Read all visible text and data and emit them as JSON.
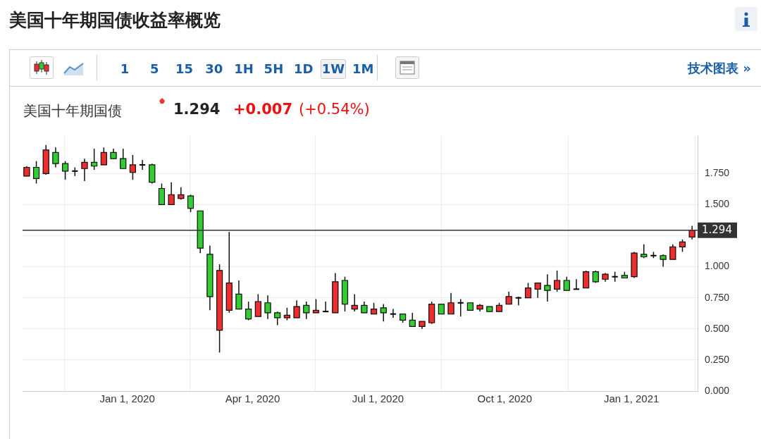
{
  "chart_data": {
    "type": "candlestick",
    "title": "美国十年期国债收益率概览",
    "subtitle": "美国十年期国债",
    "annotations": [
      "1.294",
      "+0.007",
      "(+0.54%)",
      "1 5 15 30 1H 5H 1D 1W 1M",
      "技术图表 »"
    ],
    "x": [
      "2019-10-20",
      "2019-10-27",
      "2019-11-03",
      "2019-11-10",
      "2019-11-17",
      "2019-11-24",
      "2019-12-01",
      "2019-12-08",
      "2019-12-15",
      "2019-12-22",
      "2019-12-29",
      "2020-01-05",
      "2020-01-12",
      "2020-01-19",
      "2020-01-26",
      "2020-02-02",
      "2020-02-09",
      "2020-02-16",
      "2020-02-23",
      "2020-03-01",
      "2020-03-08",
      "2020-03-15",
      "2020-03-22",
      "2020-03-29",
      "2020-04-05",
      "2020-04-12",
      "2020-04-19",
      "2020-04-26",
      "2020-05-03",
      "2020-05-10",
      "2020-05-17",
      "2020-05-24",
      "2020-05-31",
      "2020-06-07",
      "2020-06-14",
      "2020-06-21",
      "2020-06-28",
      "2020-07-05",
      "2020-07-12",
      "2020-07-19",
      "2020-07-26",
      "2020-08-02",
      "2020-08-09",
      "2020-08-16",
      "2020-08-23",
      "2020-08-30",
      "2020-09-06",
      "2020-09-13",
      "2020-09-20",
      "2020-09-27",
      "2020-10-04",
      "2020-10-11",
      "2020-10-18",
      "2020-10-25",
      "2020-11-01",
      "2020-11-08",
      "2020-11-15",
      "2020-11-22",
      "2020-11-29",
      "2020-12-06",
      "2020-12-13",
      "2020-12-20",
      "2020-12-27",
      "2021-01-03",
      "2021-01-10",
      "2021-01-17",
      "2021-01-24",
      "2021-01-31",
      "2021-02-07",
      "2021-02-14"
    ],
    "ohlc": [
      [
        1.73,
        1.81,
        1.73,
        1.8
      ],
      [
        1.8,
        1.85,
        1.67,
        1.71
      ],
      [
        1.75,
        1.98,
        1.74,
        1.94
      ],
      [
        1.92,
        1.96,
        1.8,
        1.83
      ],
      [
        1.83,
        1.85,
        1.7,
        1.77
      ],
      [
        1.77,
        1.8,
        1.73,
        1.77
      ],
      [
        1.79,
        1.87,
        1.69,
        1.84
      ],
      [
        1.84,
        1.95,
        1.78,
        1.81
      ],
      [
        1.82,
        1.96,
        1.82,
        1.92
      ],
      [
        1.92,
        1.95,
        1.87,
        1.87
      ],
      [
        1.87,
        1.95,
        1.79,
        1.79
      ],
      [
        1.76,
        1.9,
        1.7,
        1.82
      ],
      [
        1.82,
        1.86,
        1.78,
        1.82
      ],
      [
        1.82,
        1.83,
        1.67,
        1.68
      ],
      [
        1.63,
        1.67,
        1.5,
        1.5
      ],
      [
        1.5,
        1.68,
        1.5,
        1.58
      ],
      [
        1.55,
        1.64,
        1.54,
        1.58
      ],
      [
        1.57,
        1.58,
        1.44,
        1.47
      ],
      [
        1.45,
        1.45,
        1.11,
        1.15
      ],
      [
        1.1,
        1.17,
        0.65,
        0.76
      ],
      [
        0.49,
        1.02,
        0.31,
        0.97
      ],
      [
        0.65,
        1.28,
        0.63,
        0.87
      ],
      [
        0.78,
        0.89,
        0.66,
        0.66
      ],
      [
        0.66,
        0.72,
        0.57,
        0.58
      ],
      [
        0.6,
        0.78,
        0.6,
        0.72
      ],
      [
        0.71,
        0.77,
        0.58,
        0.63
      ],
      [
        0.63,
        0.64,
        0.53,
        0.59
      ],
      [
        0.59,
        0.67,
        0.57,
        0.61
      ],
      [
        0.59,
        0.73,
        0.59,
        0.68
      ],
      [
        0.69,
        0.72,
        0.58,
        0.63
      ],
      [
        0.63,
        0.74,
        0.63,
        0.65
      ],
      [
        0.64,
        0.72,
        0.64,
        0.64
      ],
      [
        0.63,
        0.95,
        0.63,
        0.88
      ],
      [
        0.89,
        0.92,
        0.64,
        0.7
      ],
      [
        0.66,
        0.78,
        0.64,
        0.69
      ],
      [
        0.69,
        0.72,
        0.63,
        0.63
      ],
      [
        0.62,
        0.71,
        0.62,
        0.66
      ],
      [
        0.67,
        0.7,
        0.56,
        0.63
      ],
      [
        0.62,
        0.66,
        0.59,
        0.62
      ],
      [
        0.62,
        0.62,
        0.55,
        0.57
      ],
      [
        0.57,
        0.63,
        0.52,
        0.52
      ],
      [
        0.52,
        0.56,
        0.5,
        0.56
      ],
      [
        0.55,
        0.72,
        0.54,
        0.7
      ],
      [
        0.7,
        0.7,
        0.62,
        0.62
      ],
      [
        0.62,
        0.79,
        0.62,
        0.71
      ],
      [
        0.71,
        0.74,
        0.6,
        0.71
      ],
      [
        0.71,
        0.71,
        0.65,
        0.65
      ],
      [
        0.66,
        0.7,
        0.64,
        0.69
      ],
      [
        0.68,
        0.68,
        0.64,
        0.64
      ],
      [
        0.64,
        0.71,
        0.64,
        0.69
      ],
      [
        0.7,
        0.8,
        0.7,
        0.76
      ],
      [
        0.75,
        0.76,
        0.69,
        0.75
      ],
      [
        0.75,
        0.87,
        0.75,
        0.83
      ],
      [
        0.82,
        0.87,
        0.75,
        0.87
      ],
      [
        0.85,
        0.94,
        0.72,
        0.81
      ],
      [
        0.82,
        0.97,
        0.8,
        0.89
      ],
      [
        0.89,
        0.92,
        0.81,
        0.81
      ],
      [
        0.82,
        0.9,
        0.82,
        0.82
      ],
      [
        0.83,
        0.97,
        0.83,
        0.96
      ],
      [
        0.96,
        0.97,
        0.87,
        0.88
      ],
      [
        0.9,
        0.95,
        0.88,
        0.94
      ],
      [
        0.92,
        0.96,
        0.88,
        0.92
      ],
      [
        0.93,
        0.96,
        0.91,
        0.91
      ],
      [
        0.92,
        1.12,
        0.91,
        1.11
      ],
      [
        1.1,
        1.18,
        1.07,
        1.08
      ],
      [
        1.09,
        1.12,
        1.07,
        1.09
      ],
      [
        1.09,
        1.1,
        1.0,
        1.06
      ],
      [
        1.06,
        1.18,
        1.06,
        1.16
      ],
      [
        1.16,
        1.22,
        1.12,
        1.2
      ],
      [
        1.24,
        1.33,
        1.22,
        1.294
      ]
    ],
    "colors": [
      "#ee2e2e",
      "#33cc33",
      "#ee2e2e",
      "#33cc33",
      "#33cc33",
      "#000000",
      "#ee2e2e",
      "#33cc33",
      "#ee2e2e",
      "#33cc33",
      "#33cc33",
      "#ee2e2e",
      "#000000",
      "#33cc33",
      "#33cc33",
      "#ee2e2e",
      "#ee2e2e",
      "#33cc33",
      "#33cc33",
      "#33cc33",
      "#ee2e2e",
      "#ee2e2e",
      "#33cc33",
      "#33cc33",
      "#ee2e2e",
      "#33cc33",
      "#33cc33",
      "#ee2e2e",
      "#ee2e2e",
      "#33cc33",
      "#ee2e2e",
      "#000000",
      "#ee2e2e",
      "#33cc33",
      "#ee2e2e",
      "#33cc33",
      "#ee2e2e",
      "#33cc33",
      "#000000",
      "#33cc33",
      "#33cc33",
      "#ee2e2e",
      "#ee2e2e",
      "#33cc33",
      "#ee2e2e",
      "#000000",
      "#33cc33",
      "#ee2e2e",
      "#33cc33",
      "#ee2e2e",
      "#ee2e2e",
      "#000000",
      "#ee2e2e",
      "#ee2e2e",
      "#33cc33",
      "#ee2e2e",
      "#33cc33",
      "#000000",
      "#ee2e2e",
      "#33cc33",
      "#ee2e2e",
      "#000000",
      "#33cc33",
      "#ee2e2e",
      "#33cc33",
      "#000000",
      "#33cc33",
      "#ee2e2e",
      "#ee2e2e",
      "#ee2e2e"
    ],
    "xlim": [
      "2019-10-17",
      "2021-02-18"
    ],
    "xticks": [
      {
        "value": "2020-01-01",
        "label": "Jan 1, 2020"
      },
      {
        "value": "2020-04-01",
        "label": "Apr 1, 2020"
      },
      {
        "value": "2020-07-01",
        "label": "Jul 1, 2020"
      },
      {
        "value": "2020-10-01",
        "label": "Oct 1, 2020"
      },
      {
        "value": "2021-01-01",
        "label": "Jan 1, 2021"
      }
    ],
    "ylim": [
      0,
      2.05
    ],
    "yticks": [
      {
        "value": 0,
        "label": "0.000"
      },
      {
        "value": 0.25,
        "label": "0.250"
      },
      {
        "value": 0.5,
        "label": "0.500"
      },
      {
        "value": 0.75,
        "label": "0.750"
      },
      {
        "value": 1,
        "label": "1.000"
      },
      {
        "value": 1.25,
        "label": null
      },
      {
        "value": 1.5,
        "label": "1.500"
      },
      {
        "value": 1.75,
        "label": "1.750"
      }
    ],
    "ref_lines": [
      {
        "axis": "y",
        "value": 1.294,
        "label": "1.294",
        "color": "#333333"
      }
    ],
    "grid": true,
    "legend": false
  }
}
